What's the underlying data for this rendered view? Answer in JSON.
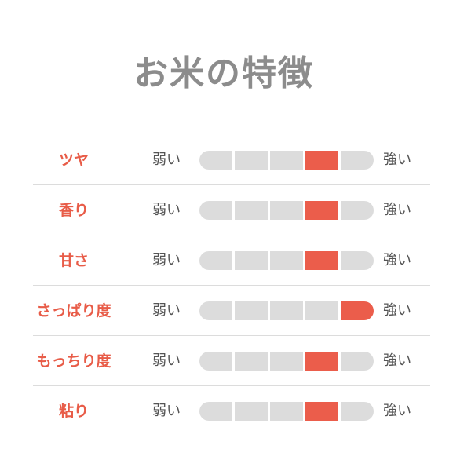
{
  "title": "お米の特徴",
  "scale": {
    "weak_label": "弱い",
    "strong_label": "強い",
    "segments": 5
  },
  "colors": {
    "accent": "#eb5d4b",
    "inactive": "#dcdcdc",
    "title": "#8c8c8c",
    "label": "#e85c48"
  },
  "attributes": [
    {
      "label": "ツヤ",
      "level": 4
    },
    {
      "label": "香り",
      "level": 4
    },
    {
      "label": "甘さ",
      "level": 4
    },
    {
      "label": "さっぱり度",
      "level": 5
    },
    {
      "label": "もっちり度",
      "level": 4
    },
    {
      "label": "粘り",
      "level": 4
    }
  ]
}
